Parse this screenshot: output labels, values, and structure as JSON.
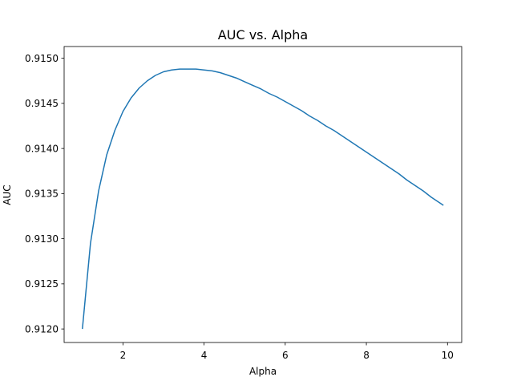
{
  "chart_data": {
    "type": "line",
    "title": "AUC vs. Alpha",
    "xlabel": "Alpha",
    "ylabel": "AUC",
    "xlim": [
      0.55,
      10.35
    ],
    "ylim": [
      0.91185,
      0.91513
    ],
    "x_ticks": [
      2,
      4,
      6,
      8,
      10
    ],
    "x_tick_labels": [
      "2",
      "4",
      "6",
      "8",
      "10"
    ],
    "y_ticks": [
      0.912,
      0.9125,
      0.913,
      0.9135,
      0.914,
      0.9145,
      0.915
    ],
    "y_tick_labels": [
      "0.9120",
      "0.9125",
      "0.9130",
      "0.9135",
      "0.9140",
      "0.9145",
      "0.9150"
    ],
    "grid": false,
    "line_color": "#1f77b4",
    "series": [
      {
        "x": [
          1.0,
          1.2,
          1.4,
          1.6,
          1.8,
          2.0,
          2.2,
          2.4,
          2.6,
          2.8,
          3.0,
          3.2,
          3.4,
          3.6,
          3.8,
          4.0,
          4.2,
          4.4,
          4.6,
          4.8,
          5.0,
          5.2,
          5.4,
          5.6,
          5.8,
          6.0,
          6.2,
          6.4,
          6.6,
          6.8,
          7.0,
          7.2,
          7.4,
          7.6,
          7.8,
          8.0,
          8.2,
          8.4,
          8.6,
          8.8,
          9.0,
          9.2,
          9.4,
          9.6,
          9.9
        ],
        "y": [
          0.912,
          0.91295,
          0.91353,
          0.91393,
          0.9142,
          0.91441,
          0.91456,
          0.91467,
          0.91475,
          0.91481,
          0.91485,
          0.91487,
          0.91488,
          0.91488,
          0.91488,
          0.91487,
          0.91486,
          0.91484,
          0.91481,
          0.91478,
          0.91474,
          0.9147,
          0.91466,
          0.91461,
          0.91457,
          0.91452,
          0.91447,
          0.91442,
          0.91436,
          0.91431,
          0.91425,
          0.9142,
          0.91414,
          0.91408,
          0.91402,
          0.91396,
          0.9139,
          0.91384,
          0.91378,
          0.91372,
          0.91365,
          0.91359,
          0.91353,
          0.91346,
          0.91337
        ]
      }
    ]
  }
}
